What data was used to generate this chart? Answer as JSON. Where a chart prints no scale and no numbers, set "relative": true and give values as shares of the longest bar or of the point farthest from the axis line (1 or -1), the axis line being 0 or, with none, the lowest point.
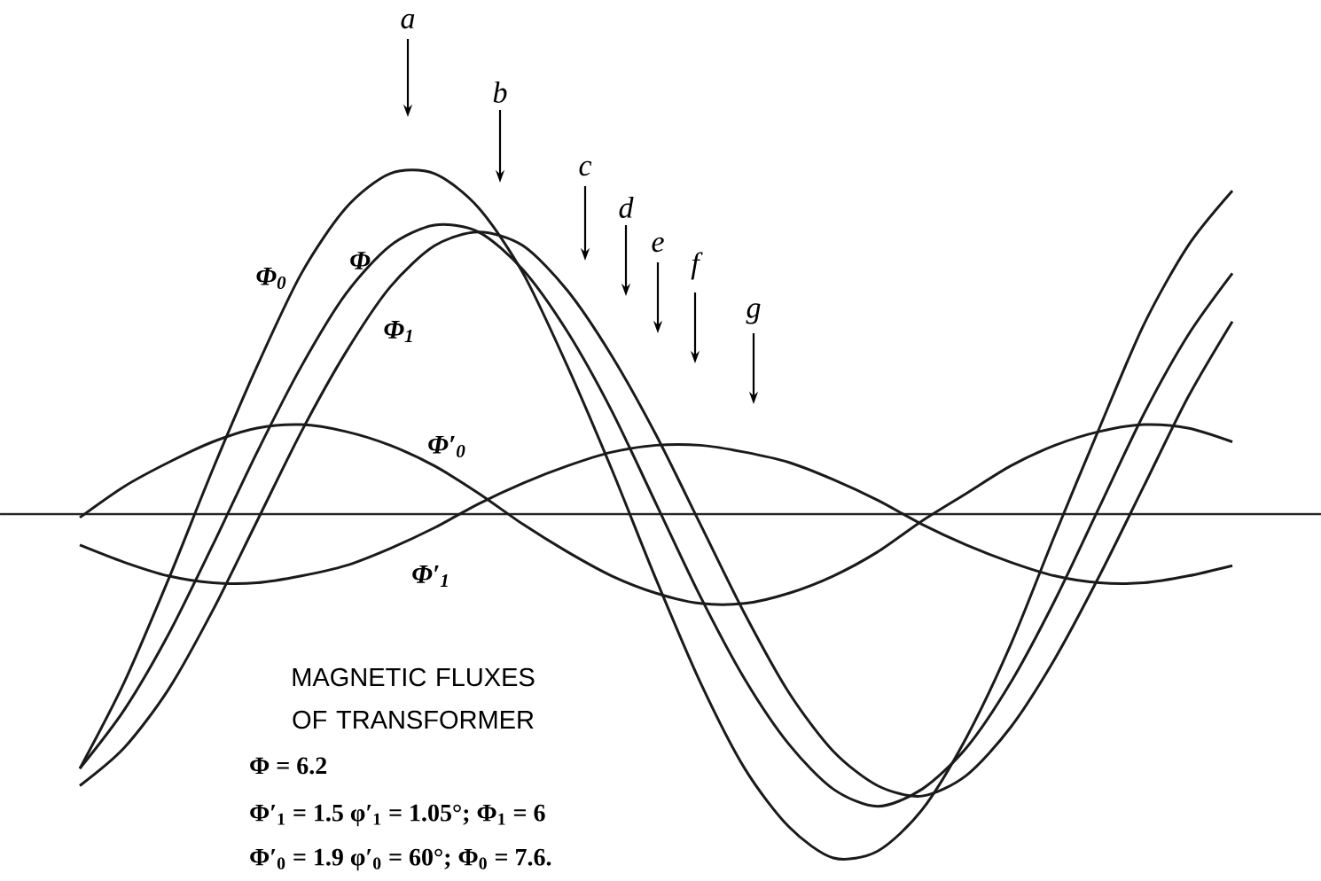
{
  "chart_data": {
    "type": "line",
    "relative": true,
    "title": "MAGNETIC FLUXES OF TRANSFORMER",
    "line_style": "solid",
    "categories": [
      null,
      null,
      null,
      null,
      null,
      null,
      null,
      null,
      null,
      null,
      null,
      null,
      null,
      null,
      null,
      null,
      null,
      null,
      null,
      null,
      null,
      null,
      null,
      null,
      null,
      null,
      null
    ],
    "series": [
      {
        "name": "Φ$_{0}$",
        "color": "#1a1a1a",
        "values": [
          -0.74,
          -0.49,
          -0.19,
          0.13,
          0.43,
          0.7,
          0.89,
          0.99,
          0.99,
          0.89,
          0.7,
          0.43,
          0.13,
          -0.19,
          -0.49,
          -0.74,
          -0.91,
          -1.0,
          -0.98,
          -0.86,
          -0.65,
          -0.38,
          -0.06,
          0.25,
          0.55,
          0.78,
          0.94
        ]
      },
      {
        "name": "Φ",
        "color": "#1a1a1a",
        "values": [
          -0.74,
          -0.57,
          -0.35,
          -0.09,
          0.18,
          0.43,
          0.64,
          0.78,
          0.84,
          0.82,
          0.71,
          0.53,
          0.3,
          0.03,
          -0.24,
          -0.48,
          -0.67,
          -0.8,
          -0.85,
          -0.8,
          -0.68,
          -0.49,
          -0.25,
          0.02,
          0.29,
          0.52,
          0.7
        ]
      },
      {
        "name": "Φ$_{1}$",
        "color": "#1a1a1a",
        "values": [
          -0.79,
          -0.68,
          -0.51,
          -0.28,
          -0.02,
          0.24,
          0.47,
          0.66,
          0.78,
          0.82,
          0.78,
          0.65,
          0.46,
          0.23,
          -0.03,
          -0.29,
          -0.52,
          -0.69,
          -0.79,
          -0.82,
          -0.76,
          -0.62,
          -0.42,
          -0.18,
          0.08,
          0.34,
          0.56
        ]
      },
      {
        "name": "Φ′$_{0}$",
        "color": "#1a1a1a",
        "values": [
          -0.01,
          0.08,
          0.15,
          0.21,
          0.25,
          0.26,
          0.24,
          0.2,
          0.14,
          0.06,
          -0.03,
          -0.11,
          -0.18,
          -0.23,
          -0.26,
          -0.26,
          -0.23,
          -0.18,
          -0.11,
          -0.02,
          0.06,
          0.14,
          0.2,
          0.24,
          0.26,
          0.25,
          0.21
        ]
      },
      {
        "name": "Φ′$_{1}$",
        "color": "#1a1a1a",
        "values": [
          -0.09,
          -0.14,
          -0.18,
          -0.2,
          -0.2,
          -0.18,
          -0.15,
          -0.1,
          -0.04,
          0.03,
          0.09,
          0.14,
          0.18,
          0.2,
          0.2,
          0.18,
          0.15,
          0.1,
          0.04,
          -0.03,
          -0.09,
          -0.14,
          -0.18,
          -0.2,
          -0.2,
          -0.18,
          -0.15
        ]
      }
    ],
    "annotations": [
      "a",
      "b",
      "c",
      "d",
      "e",
      "f",
      "g",
      "Φ = 6.2",
      "Φ′$_{1}$ = 1.5 φ′$_{1}$ = 1.05°; Φ$_{1}$ = 6",
      "Φ′$_{0}$ = 1.9 φ′$_{0}$ = 60°; Φ$_{0}$ = 7.6."
    ]
  }
}
